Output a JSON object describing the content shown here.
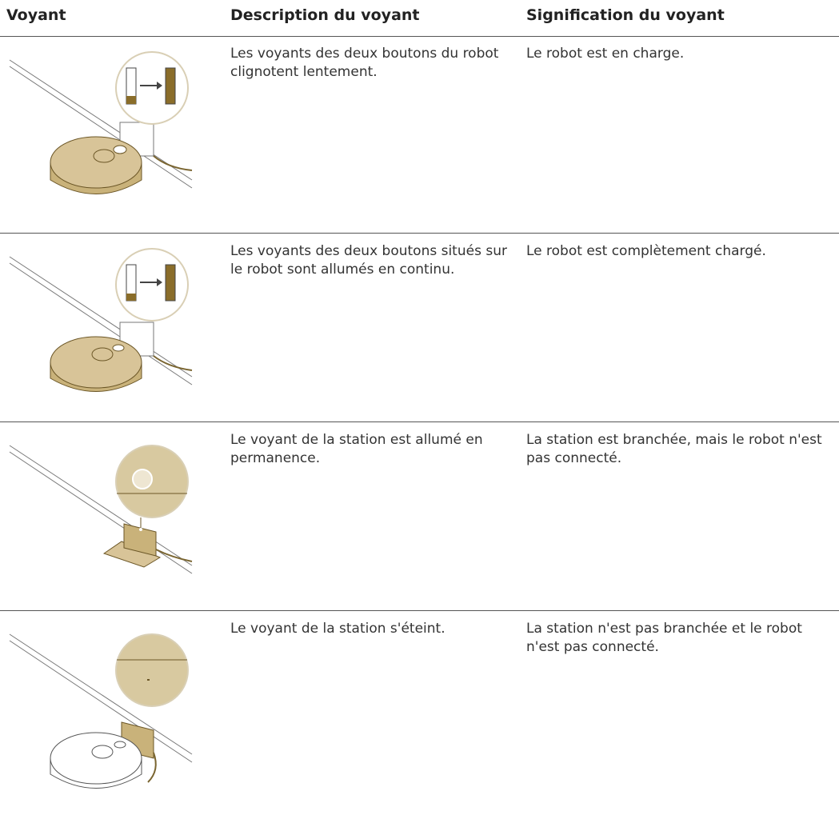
{
  "header": {
    "columns": [
      "Voyant",
      "Description du voyant",
      "Signification du voyant"
    ]
  },
  "table": {
    "rows": [
      {
        "description": "Les voyants des deux boutons du robot clignotent lentement.",
        "meaning": "Le robot est en charge."
      },
      {
        "description": "Les voyants des deux boutons situés sur le robot sont allumés en continu.",
        "meaning": "Le robot est complètement chargé."
      },
      {
        "description": "Le voyant de la station est allumé en permanence.",
        "meaning": "La station est branchée, mais le robot n'est pas connecté."
      },
      {
        "description": "Le voyant de la station s'éteint.",
        "meaning": "La station n'est pas branchée et le robot n'est pas connecté."
      }
    ]
  }
}
